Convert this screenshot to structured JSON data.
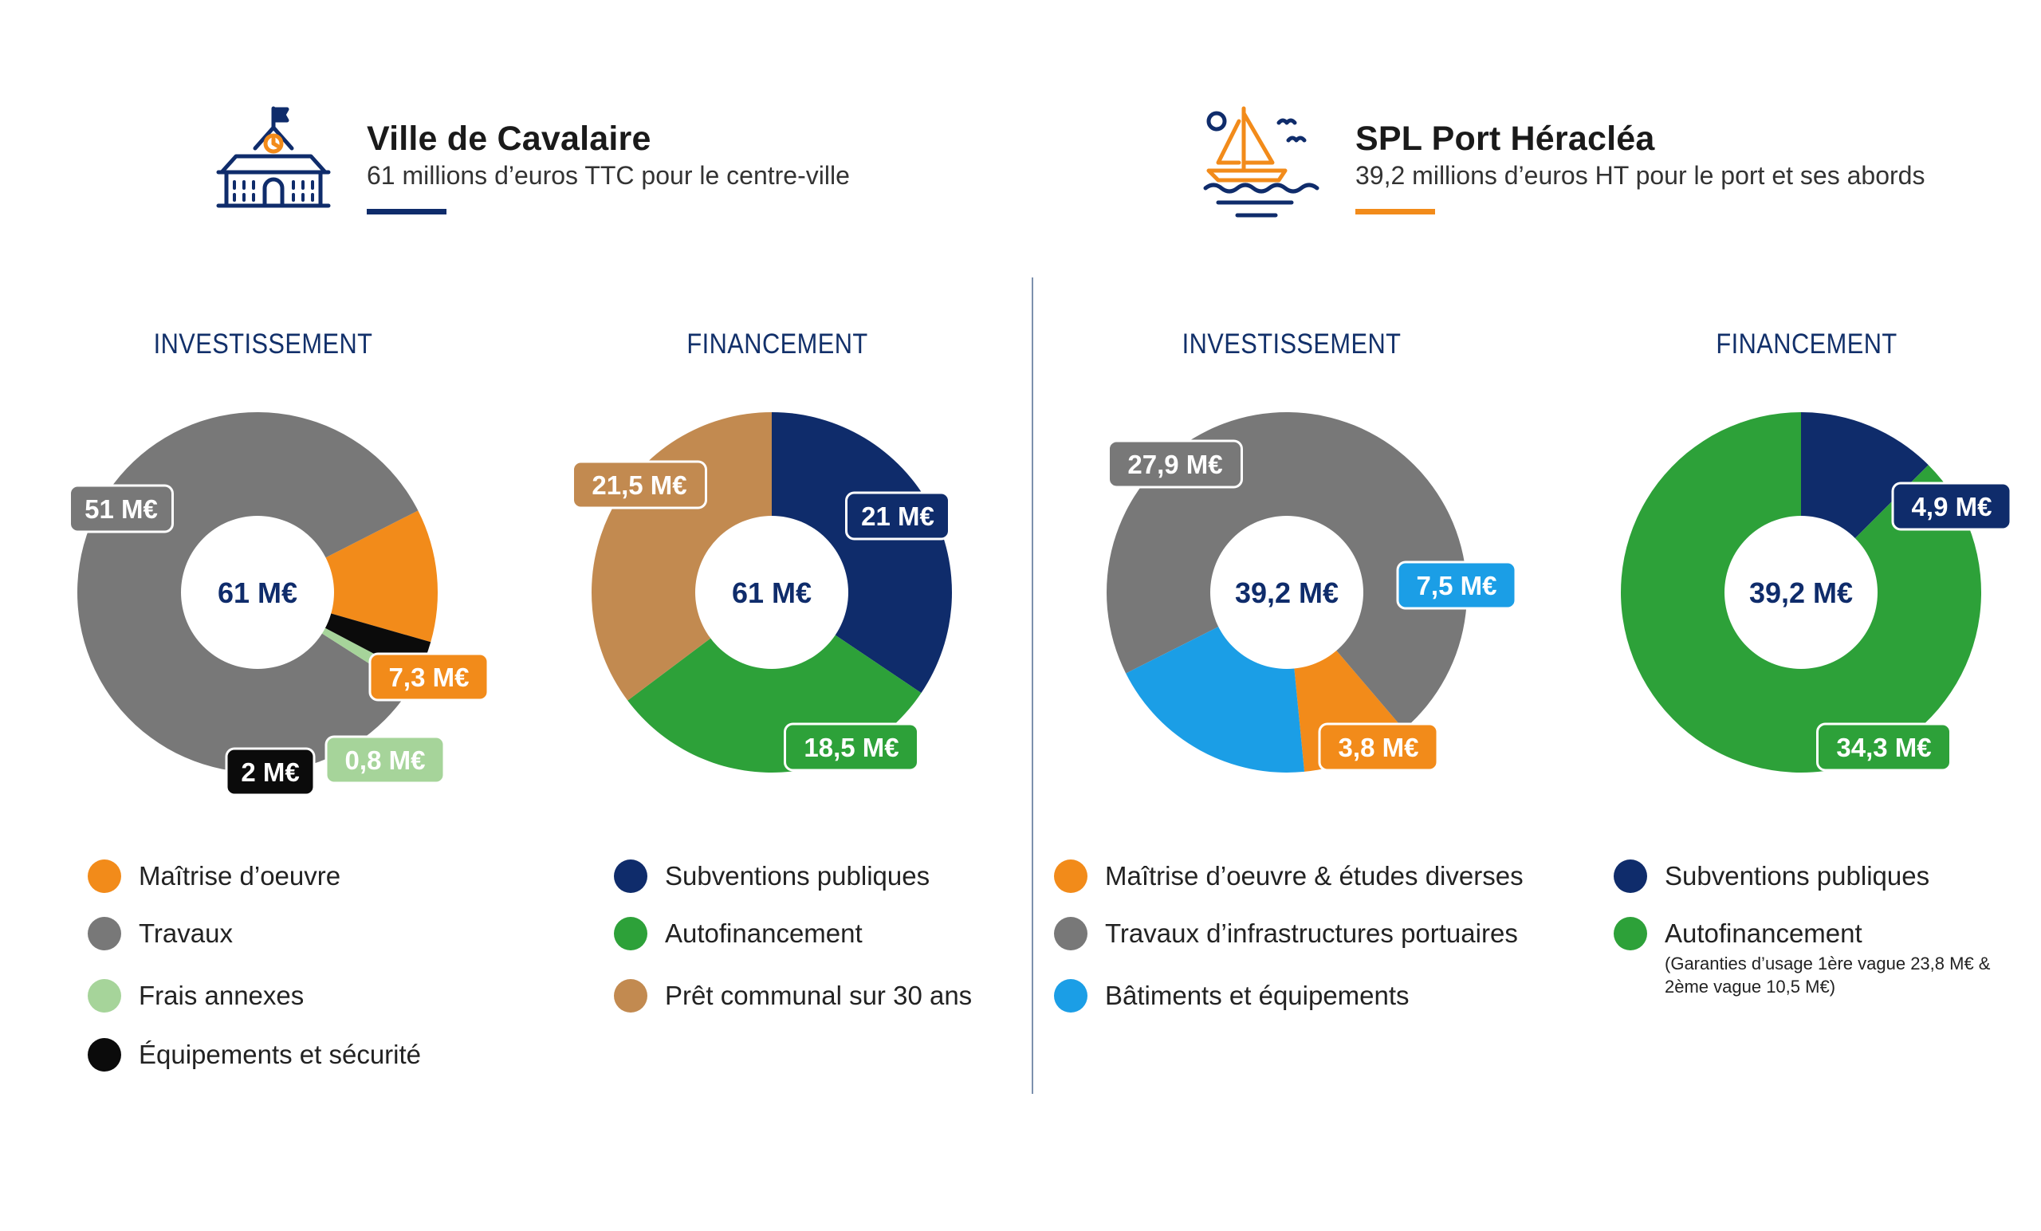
{
  "colors": {
    "navy": "#0f2c6b",
    "orange": "#f28b1a",
    "gray": "#787878",
    "light_green": "#a6d49a",
    "black": "#0b0b0b",
    "green": "#2da139",
    "brown": "#c28a50",
    "blue": "#1b9ee6",
    "divider": "#7c90ad"
  },
  "left_header": {
    "icon": "town-hall-icon",
    "title": "Ville de Cavalaire",
    "subtitle": "61 millions d’euros TTC pour le centre-ville"
  },
  "right_header": {
    "icon": "sailboat-icon",
    "title": "SPL Port Héracléa",
    "subtitle": "39,2 millions d’euros HT pour le port et ses abords"
  },
  "chart_data": [
    {
      "type": "pie",
      "title": "INVESTISSEMENT",
      "center_label": "61 M€",
      "categories": [
        "Maîtrise d’oeuvre",
        "Travaux",
        "Frais annexes",
        "Équipements et sécurité"
      ],
      "values": [
        7.3,
        51,
        0.8,
        2
      ],
      "data_labels": [
        "7,3 M€",
        "51 M€",
        "0,8 M€",
        "2 M€"
      ],
      "colors": [
        "#f28b1a",
        "#787878",
        "#a6d49a",
        "#0b0b0b"
      ],
      "total": 61
    },
    {
      "type": "pie",
      "title": "FINANCEMENT",
      "center_label": "61 M€",
      "categories": [
        "Subventions publiques",
        "Autofinancement",
        "Prêt communal sur 30 ans"
      ],
      "values": [
        21,
        18.5,
        21.5
      ],
      "data_labels": [
        "21 M€",
        "18,5 M€",
        "21,5 M€"
      ],
      "colors": [
        "#0f2c6b",
        "#2da139",
        "#c28a50"
      ],
      "total": 61
    },
    {
      "type": "pie",
      "title": "INVESTISSEMENT",
      "center_label": "39,2 M€",
      "categories": [
        "Maîtrise d’oeuvre & études diverses",
        "Travaux d’infrastructures portuaires",
        "Bâtiments et équipements"
      ],
      "values": [
        3.8,
        27.9,
        7.5
      ],
      "data_labels": [
        "3,8 M€",
        "27,9 M€",
        "7,5 M€"
      ],
      "colors": [
        "#f28b1a",
        "#787878",
        "#1b9ee6"
      ],
      "total": 39.2
    },
    {
      "type": "pie",
      "title": "FINANCEMENT",
      "center_label": "39,2 M€",
      "categories": [
        "Subventions publiques",
        "Autofinancement"
      ],
      "notes": [
        "",
        "(Garanties d’usage 1ère vague 23,8 M€ & 2ème vague 10,5 M€)"
      ],
      "values": [
        4.9,
        34.3
      ],
      "data_labels": [
        "4,9 M€",
        "34,3 M€"
      ],
      "colors": [
        "#0f2c6b",
        "#2da139"
      ],
      "total": 39.2
    }
  ]
}
